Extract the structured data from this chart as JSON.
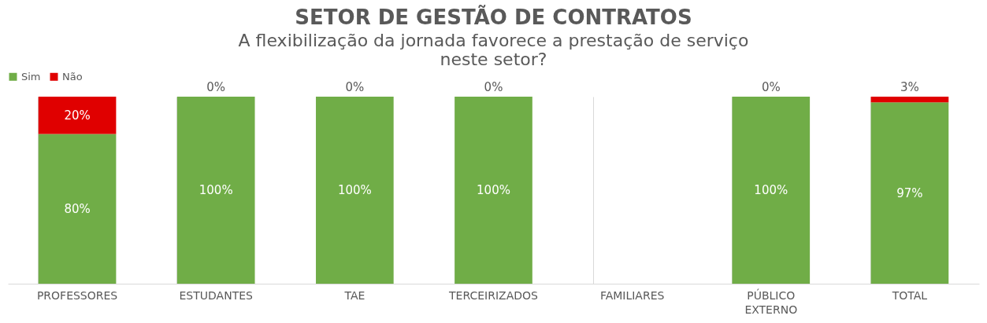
{
  "chart_data": {
    "type": "bar",
    "stacked": true,
    "title": "SETOR DE GESTÃO DE CONTRATOS",
    "subtitle": "A flexibilização da jornada favorece a prestação de serviço neste setor?",
    "categories": [
      "PROFESSORES",
      "ESTUDANTES",
      "TAE",
      "TERCEIRIZADOS",
      "FAMILIARES",
      "PÚBLICO EXTERNO",
      "TOTAL"
    ],
    "series": [
      {
        "name": "Sim",
        "color": "#70ad47",
        "values": [
          80,
          100,
          100,
          100,
          0,
          100,
          97
        ],
        "value_labels": [
          "80%",
          "100%",
          "100%",
          "100%",
          null,
          "100%",
          "97%"
        ]
      },
      {
        "name": "Não",
        "color": "#e00000",
        "values": [
          20,
          0,
          0,
          0,
          0,
          0,
          3
        ],
        "value_labels": [
          "20%",
          "0%",
          "0%",
          "0%",
          null,
          "0%",
          "3%"
        ]
      }
    ],
    "ylim": [
      0,
      100
    ],
    "tick_labels": "x",
    "grid": "x",
    "legend": "top"
  }
}
